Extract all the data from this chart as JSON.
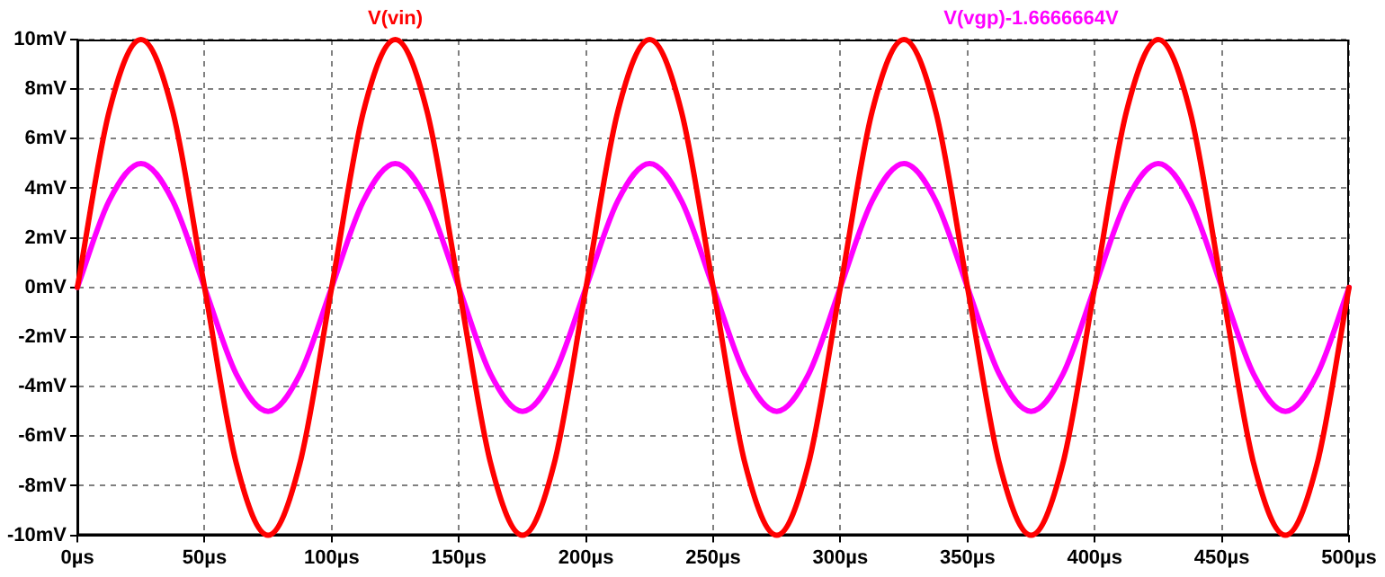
{
  "chart_data": {
    "type": "line",
    "x": [
      0,
      12.5,
      25,
      37.5,
      50,
      62.5,
      75,
      87.5,
      100,
      112.5,
      125,
      137.5,
      150,
      162.5,
      175,
      187.5,
      200,
      212.5,
      225,
      237.5,
      250,
      262.5,
      275,
      287.5,
      300,
      312.5,
      325,
      337.5,
      350,
      362.5,
      375,
      387.5,
      400,
      412.5,
      425,
      437.5,
      450,
      462.5,
      475,
      487.5,
      500
    ],
    "series": [
      {
        "name": "V(vin)",
        "color": "#ff0000",
        "values": [
          0,
          7.1,
          10,
          7.1,
          0,
          -7.1,
          -10,
          -7.1,
          0,
          7.1,
          10,
          7.1,
          0,
          -7.1,
          -10,
          -7.1,
          0,
          7.1,
          10,
          7.1,
          0,
          -7.1,
          -10,
          -7.1,
          0,
          7.1,
          10,
          7.1,
          0,
          -7.1,
          -10,
          -7.1,
          0,
          7.1,
          10,
          7.1,
          0,
          -7.1,
          -10,
          -7.1,
          0
        ]
      },
      {
        "name": "V(vgp)-1.6666664V",
        "color": "#ff00ff",
        "values": [
          0,
          3.5,
          5,
          3.5,
          0,
          -3.5,
          -5,
          -3.5,
          0,
          3.5,
          5,
          3.5,
          0,
          -3.5,
          -5,
          -3.5,
          0,
          3.5,
          5,
          3.5,
          0,
          -3.5,
          -5,
          -3.5,
          0,
          3.5,
          5,
          3.5,
          0,
          -3.5,
          -5,
          -3.5,
          0,
          3.5,
          5,
          3.5,
          0,
          -3.5,
          -5,
          -3.5,
          0
        ]
      }
    ],
    "xlim": [
      0,
      500
    ],
    "xticks": [
      {
        "value": 0,
        "label": "0µs"
      },
      {
        "value": 50,
        "label": "50µs"
      },
      {
        "value": 100,
        "label": "100µs"
      },
      {
        "value": 150,
        "label": "150µs"
      },
      {
        "value": 200,
        "label": "200µs"
      },
      {
        "value": 250,
        "label": "250µs"
      },
      {
        "value": 300,
        "label": "300µs"
      },
      {
        "value": 350,
        "label": "350µs"
      },
      {
        "value": 400,
        "label": "400µs"
      },
      {
        "value": 450,
        "label": "450µs"
      },
      {
        "value": 500,
        "label": "500µs"
      }
    ],
    "ylim": [
      -10,
      10
    ],
    "yticks": [
      {
        "value": -10,
        "label": "-10mV"
      },
      {
        "value": -8,
        "label": "-8mV"
      },
      {
        "value": -6,
        "label": "-6mV"
      },
      {
        "value": -4,
        "label": "-4mV"
      },
      {
        "value": -2,
        "label": "-2mV"
      },
      {
        "value": 0,
        "label": "0mV"
      },
      {
        "value": 2,
        "label": "2mV"
      },
      {
        "value": 4,
        "label": "4mV"
      },
      {
        "value": 6,
        "label": "6mV"
      },
      {
        "value": 8,
        "label": "8mV"
      },
      {
        "value": 10,
        "label": "10mV"
      }
    ],
    "grid": true,
    "legend": "top",
    "marker": "none",
    "line_style": "solid"
  }
}
